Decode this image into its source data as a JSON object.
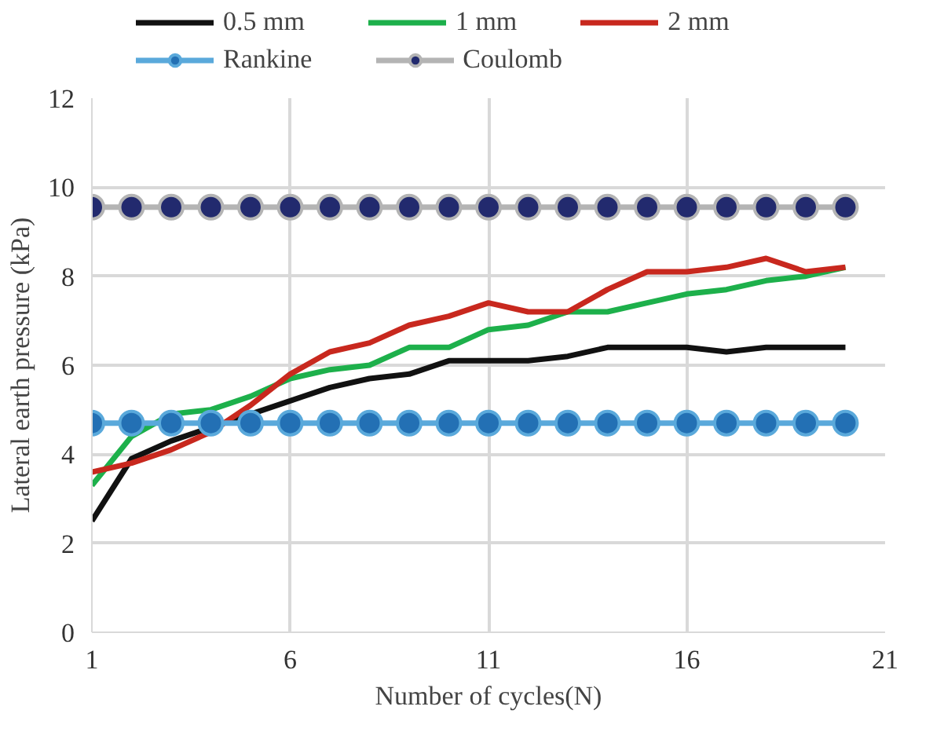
{
  "chart_data": {
    "type": "line",
    "xlabel": "Number of cycles(N)",
    "ylabel": "Lateral earth pressure (kPa)",
    "x": [
      1,
      2,
      3,
      4,
      5,
      6,
      7,
      8,
      9,
      10,
      11,
      12,
      13,
      14,
      15,
      16,
      17,
      18,
      19,
      20
    ],
    "xlim": [
      1,
      21
    ],
    "xticks": [
      1,
      6,
      11,
      16,
      21
    ],
    "ylim": [
      0,
      12
    ],
    "yticks": [
      0,
      2,
      4,
      6,
      8,
      10,
      12
    ],
    "grid": true,
    "legend": "top",
    "marker": "none",
    "line_style": "solid",
    "series": [
      {
        "name": "0.5 mm",
        "color": "#111111",
        "values": [
          2.5,
          3.9,
          4.3,
          4.6,
          4.9,
          5.2,
          5.5,
          5.7,
          5.8,
          6.1,
          6.1,
          6.1,
          6.2,
          6.4,
          6.4,
          6.4,
          6.3,
          6.4,
          6.4,
          6.4
        ]
      },
      {
        "name": "1 mm",
        "color": "#1db04b",
        "values": [
          3.3,
          4.4,
          4.9,
          5.0,
          5.3,
          5.7,
          5.9,
          6.0,
          6.4,
          6.4,
          6.8,
          6.9,
          7.2,
          7.2,
          7.4,
          7.6,
          7.7,
          7.9,
          8.0,
          8.2
        ]
      },
      {
        "name": "2 mm",
        "color": "#c8281e",
        "values": [
          3.6,
          3.8,
          4.1,
          4.5,
          5.1,
          5.8,
          6.3,
          6.5,
          6.9,
          7.1,
          7.4,
          7.2,
          7.2,
          7.7,
          8.1,
          8.1,
          8.2,
          8.4,
          8.1,
          8.2
        ]
      },
      {
        "name": "Rankine",
        "color": "#5aa9db",
        "marker": "circle",
        "values": [
          4.7,
          4.7,
          4.7,
          4.7,
          4.7,
          4.7,
          4.7,
          4.7,
          4.7,
          4.7,
          4.7,
          4.7,
          4.7,
          4.7,
          4.7,
          4.7,
          4.7,
          4.7,
          4.7,
          4.7
        ]
      },
      {
        "name": "Coulomb",
        "color": "#b4b4b4",
        "marker": "circle",
        "values": [
          9.55,
          9.55,
          9.55,
          9.55,
          9.55,
          9.55,
          9.55,
          9.55,
          9.55,
          9.55,
          9.55,
          9.55,
          9.55,
          9.55,
          9.55,
          9.55,
          9.55,
          9.55,
          9.55,
          9.55
        ]
      }
    ]
  }
}
